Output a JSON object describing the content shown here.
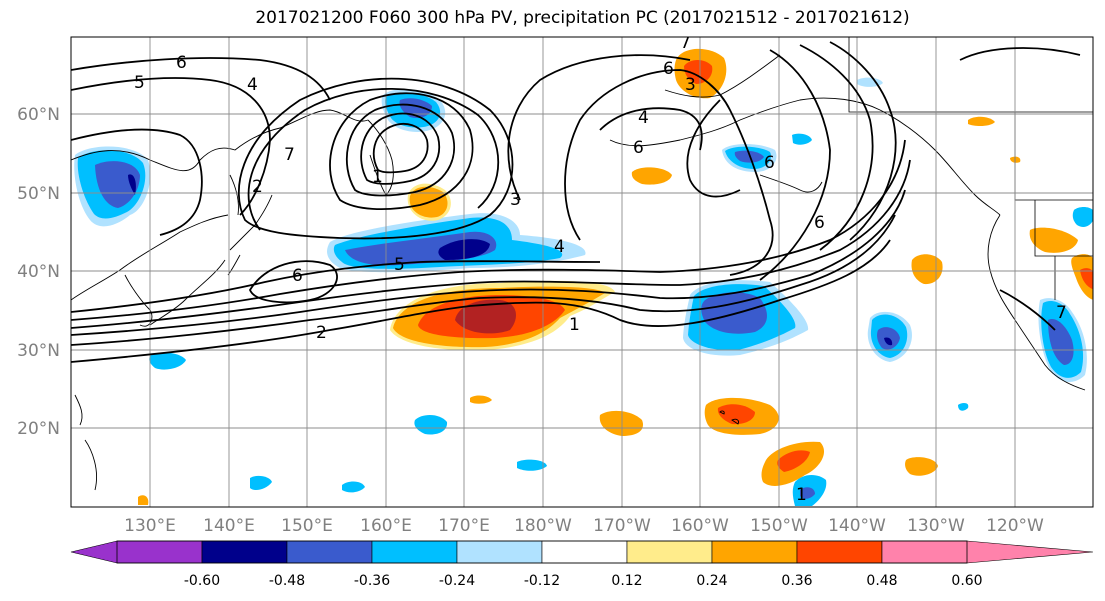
{
  "title": "2017021200 F060 300 hPa PV, precipitation PC (2017021512 - 2017021612)",
  "lat_labels": [
    "60°N",
    "50°N",
    "40°N",
    "30°N",
    "20°N"
  ],
  "lon_labels": [
    "130°E",
    "140°E",
    "150°E",
    "160°E",
    "170°E",
    "180°W",
    "170°W",
    "160°W",
    "150°W",
    "140°W",
    "130°W",
    "120°W"
  ],
  "colorbar": {
    "colors": [
      "#9932cc",
      "#00008b",
      "#3a5bcd",
      "#00bfff",
      "#b0e2ff",
      "#ffffff",
      "#ffec8b",
      "#ffa500",
      "#ff4500",
      "#b22222",
      "#ff82ab"
    ],
    "tick_labels": [
      "-0.60",
      "-0.48",
      "-0.36",
      "-0.24",
      "-0.12",
      "0.12",
      "0.24",
      "0.36",
      "0.48",
      "0.60"
    ]
  },
  "contour_labels": [
    "6",
    "5",
    "4",
    "3",
    "2",
    "1",
    "7",
    "6",
    "5",
    "4",
    "2",
    "1",
    "6",
    "7",
    "6",
    "3",
    "4",
    "6",
    "6",
    "7",
    "1"
  ]
}
